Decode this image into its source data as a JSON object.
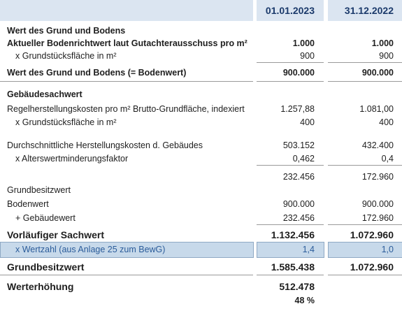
{
  "table": {
    "header": [
      "01.01.2023",
      "31.12.2022"
    ],
    "rows": [
      {
        "label": "Wert des Grund und Bodens"
      },
      {
        "label": "Aktueller Bodenrichtwert laut Gutachterausschuss pro m²",
        "values": [
          "1.000",
          "1.000"
        ]
      },
      {
        "label": "x  Grundstücksfläche in m²",
        "values": [
          "900",
          "900"
        ]
      },
      {
        "label": "Wert des Grund und Bodens (= Bodenwert)",
        "values": [
          "900.000",
          "900.000"
        ]
      },
      {
        "label": "Gebäudesachwert"
      },
      {
        "label": "Regelherstellungskosten pro m² Brutto-Grundfläche, indexiert",
        "values": [
          "1.257,88",
          "1.081,00"
        ]
      },
      {
        "label": "x  Grundstücksfläche in m²",
        "values": [
          "400",
          "400"
        ]
      },
      {
        "label": "Durchschnittliche Herstellungskosten d. Gebäudes",
        "values": [
          "503.152",
          "432.400"
        ]
      },
      {
        "label": "x  Alterswertminderungsfaktor",
        "values": [
          "0,462",
          "0,4"
        ]
      },
      {
        "values": [
          "232.456",
          "172.960"
        ]
      },
      {
        "label": "Grundbesitzwert"
      },
      {
        "label": "Bodenwert",
        "values": [
          "900.000",
          "900.000"
        ]
      },
      {
        "label": "+ Gebäudewert",
        "values": [
          "232.456",
          "172.960"
        ]
      },
      {
        "label": "Vorläufiger Sachwert",
        "values": [
          "1.132.456",
          "1.072.960"
        ]
      },
      {
        "label": "x  Wertzahl (aus Anlage 25 zum BewG)",
        "values": [
          "1,4",
          "1,0"
        ]
      },
      {
        "label": "Grundbesitzwert",
        "values": [
          "1.585.438",
          "1.072.960"
        ]
      },
      {
        "label": "Werterhöhung",
        "values": [
          "512.478"
        ]
      },
      {
        "values": [
          "48 %"
        ]
      }
    ]
  }
}
